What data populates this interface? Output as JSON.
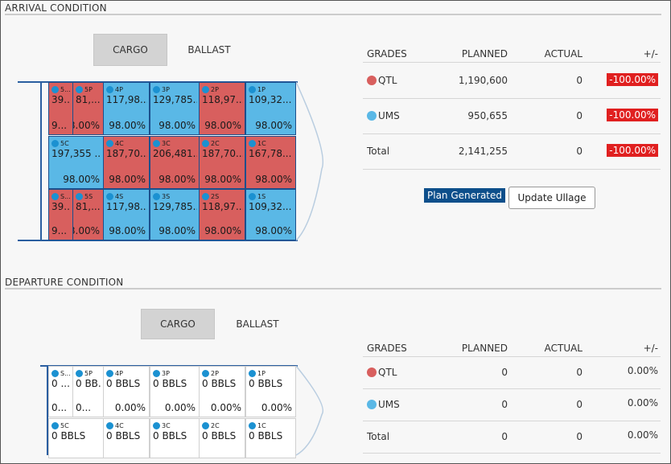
{
  "arrival": {
    "title": "ARRIVAL CONDITION",
    "toggle": {
      "cargo": "CARGO",
      "ballast": "BALLAST",
      "active": "cargo"
    },
    "tanks_top": [
      {
        "id": "5...",
        "value": "39...",
        "pct": "9...",
        "color": "red"
      },
      {
        "id": "5P",
        "value": "81,...",
        "pct": "98.00%",
        "color": "red"
      },
      {
        "id": "4P",
        "value": "117,98...",
        "pct": "98.00%",
        "color": "blue"
      },
      {
        "id": "3P",
        "value": "129,785...",
        "pct": "98.00%",
        "color": "blue"
      },
      {
        "id": "2P",
        "value": "118,97...",
        "pct": "98.00%",
        "color": "red"
      },
      {
        "id": "1P",
        "value": "109,32...",
        "pct": "98.00%",
        "color": "blue"
      }
    ],
    "tanks_mid": [
      {
        "id": "5C",
        "value": "197,355 ...",
        "pct": "98.00%",
        "color": "blue"
      },
      {
        "id": "4C",
        "value": "187,70...",
        "pct": "98.00%",
        "color": "red"
      },
      {
        "id": "3C",
        "value": "206,481...",
        "pct": "98.00%",
        "color": "red"
      },
      {
        "id": "2C",
        "value": "187,70...",
        "pct": "98.00%",
        "color": "red"
      },
      {
        "id": "1C",
        "value": "167,78...",
        "pct": "98.00%",
        "color": "red"
      }
    ],
    "tanks_bot": [
      {
        "id": "S...",
        "value": "39...",
        "pct": "9...",
        "color": "red"
      },
      {
        "id": "5S",
        "value": "81,...",
        "pct": "98.00%",
        "color": "red"
      },
      {
        "id": "4S",
        "value": "117,98...",
        "pct": "98.00%",
        "color": "blue"
      },
      {
        "id": "3S",
        "value": "129,785...",
        "pct": "98.00%",
        "color": "blue"
      },
      {
        "id": "2S",
        "value": "118,97...",
        "pct": "98.00%",
        "color": "red"
      },
      {
        "id": "1S",
        "value": "109,32...",
        "pct": "98.00%",
        "color": "blue"
      }
    ],
    "grades": {
      "headers": [
        "GRADES",
        "PLANNED",
        "ACTUAL",
        "+/-"
      ],
      "rows": [
        {
          "grade": "QTL",
          "color": "#d85f5e",
          "planned": "1,190,600",
          "actual": "0",
          "diff": "-100.00%"
        },
        {
          "grade": "UMS",
          "color": "#5ab8e6",
          "planned": "950,655",
          "actual": "0",
          "diff": "-100.00%"
        },
        {
          "grade": "Total",
          "color": "",
          "planned": "2,141,255",
          "actual": "0",
          "diff": "-100.00%"
        }
      ]
    },
    "plan_generated": "Plan Generated",
    "update_ullage": "Update Ullage"
  },
  "departure": {
    "title": "DEPARTURE CONDITION",
    "toggle": {
      "cargo": "CARGO",
      "ballast": "BALLAST",
      "active": "cargo"
    },
    "tanks_top": [
      {
        "id": "S...",
        "value": "0 ...",
        "pct": "0...",
        "color": "empty"
      },
      {
        "id": "5P",
        "value": "0 BB...",
        "pct": "0...",
        "color": "empty"
      },
      {
        "id": "4P",
        "value": "0 BBLS",
        "pct": "0.00%",
        "color": "empty"
      },
      {
        "id": "3P",
        "value": "0 BBLS",
        "pct": "0.00%",
        "color": "empty"
      },
      {
        "id": "2P",
        "value": "0 BBLS",
        "pct": "0.00%",
        "color": "empty"
      },
      {
        "id": "1P",
        "value": "0 BBLS",
        "pct": "0.00%",
        "color": "empty"
      }
    ],
    "tanks_mid": [
      {
        "id": "5C",
        "value": "0 BBLS",
        "pct": "",
        "color": "empty"
      },
      {
        "id": "4C",
        "value": "0 BBLS",
        "pct": "",
        "color": "empty"
      },
      {
        "id": "3C",
        "value": "0 BBLS",
        "pct": "",
        "color": "empty"
      },
      {
        "id": "2C",
        "value": "0 BBLS",
        "pct": "",
        "color": "empty"
      },
      {
        "id": "1C",
        "value": "0 BBLS",
        "pct": "",
        "color": "empty"
      }
    ],
    "grades": {
      "headers": [
        "GRADES",
        "PLANNED",
        "ACTUAL",
        "+/-"
      ],
      "rows": [
        {
          "grade": "QTL",
          "color": "#d85f5e",
          "planned": "0",
          "actual": "0",
          "diff": "0.00%"
        },
        {
          "grade": "UMS",
          "color": "#5ab8e6",
          "planned": "0",
          "actual": "0",
          "diff": "0.00%"
        },
        {
          "grade": "Total",
          "color": "",
          "planned": "0",
          "actual": "0",
          "diff": "0.00%"
        }
      ]
    }
  }
}
